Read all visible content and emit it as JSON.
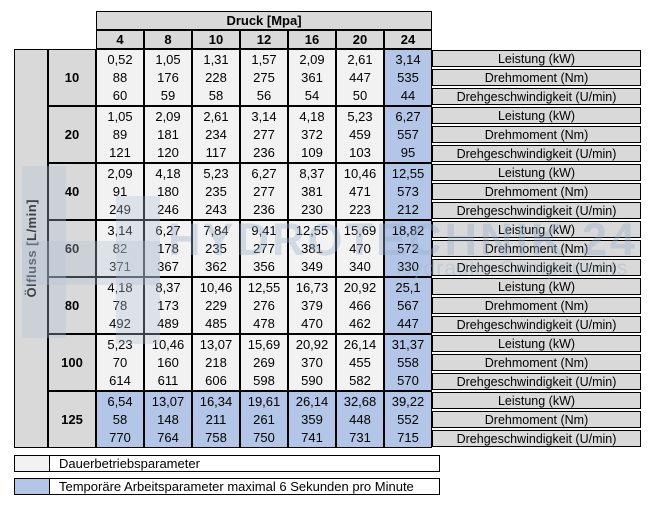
{
  "table": {
    "pressure_axis_label": "Druck [Mpa]",
    "pressures": [
      "4",
      "8",
      "10",
      "12",
      "16",
      "20",
      "24"
    ],
    "flow_axis_label": "Ölfluss [L/min]",
    "metric_labels": [
      "Leistung (kW)",
      "Drehmoment (Nm)",
      "Drehgeschwindigkeit (U/min)"
    ],
    "rows": [
      {
        "flow": "10",
        "leistung": [
          "0,52",
          "1,05",
          "1,31",
          "1,57",
          "2,09",
          "2,61",
          "3,14"
        ],
        "drehmoment": [
          "88",
          "176",
          "228",
          "275",
          "361",
          "447",
          "535"
        ],
        "drehgeschwindigkeit": [
          "60",
          "59",
          "58",
          "56",
          "54",
          "50",
          "44"
        ]
      },
      {
        "flow": "20",
        "leistung": [
          "1,05",
          "2,09",
          "2,61",
          "3,14",
          "4,18",
          "5,23",
          "6,27"
        ],
        "drehmoment": [
          "89",
          "181",
          "234",
          "277",
          "372",
          "459",
          "557"
        ],
        "drehgeschwindigkeit": [
          "121",
          "120",
          "117",
          "236",
          "109",
          "103",
          "95"
        ]
      },
      {
        "flow": "40",
        "leistung": [
          "2,09",
          "4,18",
          "5,23",
          "6,27",
          "8,37",
          "10,46",
          "12,55"
        ],
        "drehmoment": [
          "91",
          "180",
          "235",
          "277",
          "381",
          "471",
          "573"
        ],
        "drehgeschwindigkeit": [
          "249",
          "246",
          "243",
          "236",
          "230",
          "223",
          "212"
        ]
      },
      {
        "flow": "60",
        "leistung": [
          "3,14",
          "6,27",
          "7,84",
          "9,41",
          "12,55",
          "15,69",
          "18,82"
        ],
        "drehmoment": [
          "82",
          "178",
          "235",
          "277",
          "381",
          "470",
          "572"
        ],
        "drehgeschwindigkeit": [
          "371",
          "367",
          "362",
          "356",
          "349",
          "340",
          "330"
        ]
      },
      {
        "flow": "80",
        "leistung": [
          "4,18",
          "8,37",
          "10,46",
          "12,55",
          "16,73",
          "20,92",
          "25,1"
        ],
        "drehmoment": [
          "78",
          "173",
          "229",
          "276",
          "379",
          "466",
          "567"
        ],
        "drehgeschwindigkeit": [
          "492",
          "489",
          "485",
          "478",
          "470",
          "462",
          "447"
        ]
      },
      {
        "flow": "100",
        "leistung": [
          "5,23",
          "10,46",
          "13,07",
          "15,69",
          "20,92",
          "26,14",
          "31,37"
        ],
        "drehmoment": [
          "70",
          "160",
          "218",
          "269",
          "370",
          "455",
          "558"
        ],
        "drehgeschwindigkeit": [
          "614",
          "611",
          "606",
          "598",
          "590",
          "582",
          "570"
        ]
      },
      {
        "flow": "125",
        "leistung": [
          "6,54",
          "13,07",
          "16,34",
          "19,61",
          "26,14",
          "32,68",
          "39,22"
        ],
        "drehmoment": [
          "58",
          "148",
          "211",
          "261",
          "359",
          "448",
          "552"
        ],
        "drehgeschwindigkeit": [
          "770",
          "764",
          "758",
          "750",
          "741",
          "731",
          "715"
        ]
      }
    ],
    "highlight": {
      "temporary_column": "24",
      "temporary_row": "125"
    }
  },
  "legend": {
    "continuous": {
      "label": "Dauerbetriebsparameter",
      "swatch_color": "#f2f2f2"
    },
    "temporary": {
      "label": "Temporäre Arbeitsparameter maximal 6 Sekunden pro Minute",
      "swatch_color": "#b4c6e7"
    }
  },
  "watermark": {
    "title": "HYDROTECHNIK 24",
    "subtitle": "Hydraulic Components"
  },
  "colors": {
    "header_bg": "#d9d9d9",
    "cell_bg": "#f2f2f2",
    "highlight_bg": "#b4c6e7",
    "border": "#000000",
    "watermark": "#9badca"
  }
}
